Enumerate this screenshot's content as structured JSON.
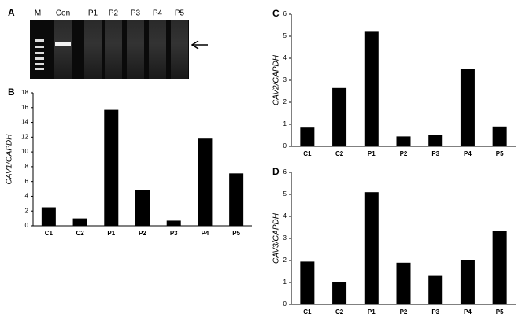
{
  "gel": {
    "panel_label": "A",
    "lanes": [
      "M",
      "Con",
      "P1",
      "P2",
      "P3",
      "P4",
      "P5"
    ]
  },
  "chart_data": [
    {
      "type": "bar",
      "panel_label": "B",
      "y_label": "CAV1/GAPDH",
      "categories": [
        "C1",
        "C2",
        "P1",
        "P2",
        "P3",
        "P4",
        "P5"
      ],
      "values": [
        2.5,
        1.0,
        15.7,
        4.8,
        0.7,
        11.8,
        7.1
      ],
      "color": "#000000",
      "ylim": [
        0,
        18
      ],
      "yticks": [
        0,
        2,
        4,
        6,
        8,
        10,
        12,
        14,
        16,
        18
      ]
    },
    {
      "type": "bar",
      "panel_label": "C",
      "y_label": "CAV2/GAPDH",
      "categories": [
        "C1",
        "C2",
        "P1",
        "P2",
        "P3",
        "P4",
        "P5"
      ],
      "values": [
        0.85,
        2.65,
        5.2,
        0.45,
        0.5,
        3.5,
        0.9
      ],
      "color": "#000000",
      "ylim": [
        0,
        6
      ],
      "yticks": [
        0,
        1,
        2,
        3,
        4,
        5,
        6
      ]
    },
    {
      "type": "bar",
      "panel_label": "D",
      "y_label": "CAV3/GAPDH",
      "categories": [
        "C1",
        "C2",
        "P1",
        "P2",
        "P3",
        "P4",
        "P5"
      ],
      "values": [
        1.95,
        1.0,
        5.1,
        1.9,
        1.3,
        2.0,
        3.35
      ],
      "color": "#000000",
      "ylim": [
        0,
        6
      ],
      "yticks": [
        0,
        1,
        2,
        3,
        4,
        5,
        6
      ]
    }
  ]
}
